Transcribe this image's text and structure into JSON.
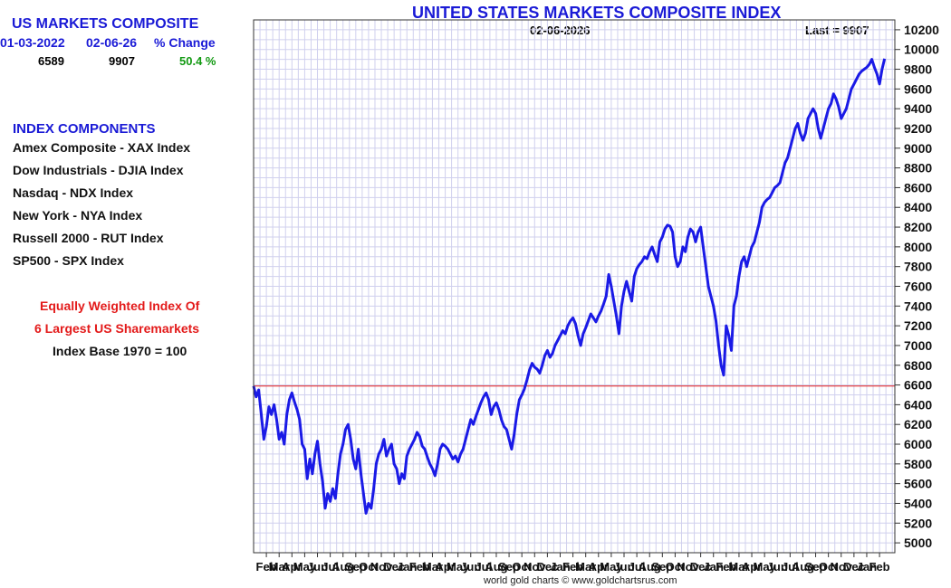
{
  "summary": {
    "title": "US MARKETS COMPOSITE",
    "start_date": "01-03-2022",
    "end_date": "02-06-26",
    "change_label": "% Change",
    "start_value": "6589",
    "end_value": "9907",
    "change_value": "50.4 %"
  },
  "components": {
    "title": "INDEX COMPONENTS",
    "items": [
      "Amex Composite - XAX Index",
      "Dow Industrials - DJIA Index",
      "Nasdaq - NDX Index",
      "New York - NYA Index",
      "Russell 2000 - RUT Index",
      "SP500 - SPX Index"
    ]
  },
  "notes": {
    "line1": "Equally Weighted Index Of",
    "line2": "6 Largest US Sharemarkets",
    "line3": "Index Base 1970 = 100"
  },
  "footer": "world gold charts © www.goldchartsrus.com",
  "chart_data": {
    "type": "line",
    "title": "UNITED STATES MARKETS COMPOSITE INDEX",
    "date_label": "02-06-2026",
    "last_label": "Last = 9907",
    "ylim": [
      4900,
      10300
    ],
    "yticks": [
      5000,
      5200,
      5400,
      5600,
      5800,
      6000,
      6200,
      6400,
      6600,
      6800,
      7000,
      7200,
      7400,
      7600,
      7800,
      8000,
      8200,
      8400,
      8600,
      8800,
      9000,
      9200,
      9400,
      9600,
      9800,
      10000,
      10200
    ],
    "reference_line": 6589,
    "month_labels": [
      "Feb",
      "Mar",
      "Apr",
      "May",
      "Jun",
      "Jul",
      "Aug",
      "Sep",
      "Oct",
      "Nov",
      "Dec",
      "Jan",
      "Feb",
      "Mar",
      "Apr",
      "May",
      "Jun",
      "Jul",
      "Aug",
      "Sep",
      "Oct",
      "Nov",
      "Dec",
      "Jan",
      "Feb",
      "Mar",
      "Apr",
      "May",
      "Jun",
      "Jul",
      "Aug",
      "Sep",
      "Oct",
      "Nov",
      "Dec",
      "Jan",
      "Feb",
      "Mar",
      "Apr",
      "May",
      "Jun",
      "Jul",
      "Aug",
      "Sep",
      "Oct",
      "Nov",
      "Dec",
      "Jan",
      "Feb"
    ],
    "x_start_month_index": -1,
    "x_end_month_index": 49.2,
    "series": [
      {
        "name": "US Markets Composite",
        "color": "#1a1ae6",
        "points": [
          [
            -1.0,
            6589
          ],
          [
            -0.8,
            6480
          ],
          [
            -0.6,
            6550
          ],
          [
            -0.4,
            6300
          ],
          [
            -0.2,
            6050
          ],
          [
            0.0,
            6180
          ],
          [
            0.2,
            6380
          ],
          [
            0.4,
            6300
          ],
          [
            0.6,
            6400
          ],
          [
            0.8,
            6250
          ],
          [
            1.0,
            6050
          ],
          [
            1.2,
            6120
          ],
          [
            1.4,
            6000
          ],
          [
            1.6,
            6300
          ],
          [
            1.8,
            6450
          ],
          [
            2.0,
            6520
          ],
          [
            2.2,
            6430
          ],
          [
            2.4,
            6350
          ],
          [
            2.6,
            6250
          ],
          [
            2.8,
            6000
          ],
          [
            3.0,
            5950
          ],
          [
            3.2,
            5650
          ],
          [
            3.4,
            5850
          ],
          [
            3.6,
            5700
          ],
          [
            3.8,
            5900
          ],
          [
            4.0,
            6030
          ],
          [
            4.2,
            5800
          ],
          [
            4.4,
            5620
          ],
          [
            4.6,
            5350
          ],
          [
            4.8,
            5500
          ],
          [
            5.0,
            5420
          ],
          [
            5.2,
            5550
          ],
          [
            5.4,
            5450
          ],
          [
            5.6,
            5700
          ],
          [
            5.8,
            5900
          ],
          [
            6.0,
            6000
          ],
          [
            6.2,
            6150
          ],
          [
            6.4,
            6200
          ],
          [
            6.6,
            6050
          ],
          [
            6.8,
            5850
          ],
          [
            7.0,
            5750
          ],
          [
            7.2,
            5950
          ],
          [
            7.4,
            5700
          ],
          [
            7.6,
            5500
          ],
          [
            7.8,
            5300
          ],
          [
            8.0,
            5400
          ],
          [
            8.2,
            5350
          ],
          [
            8.4,
            5550
          ],
          [
            8.6,
            5800
          ],
          [
            8.8,
            5900
          ],
          [
            9.0,
            5950
          ],
          [
            9.2,
            6050
          ],
          [
            9.4,
            5880
          ],
          [
            9.6,
            5950
          ],
          [
            9.8,
            6000
          ],
          [
            10.0,
            5800
          ],
          [
            10.2,
            5750
          ],
          [
            10.4,
            5600
          ],
          [
            10.6,
            5700
          ],
          [
            10.8,
            5650
          ],
          [
            11.0,
            5880
          ],
          [
            11.2,
            5950
          ],
          [
            11.4,
            6000
          ],
          [
            11.6,
            6050
          ],
          [
            11.8,
            6120
          ],
          [
            12.0,
            6080
          ],
          [
            12.2,
            5980
          ],
          [
            12.4,
            5950
          ],
          [
            12.6,
            5870
          ],
          [
            12.8,
            5800
          ],
          [
            13.0,
            5750
          ],
          [
            13.2,
            5680
          ],
          [
            13.4,
            5800
          ],
          [
            13.6,
            5950
          ],
          [
            13.8,
            6000
          ],
          [
            14.0,
            5980
          ],
          [
            14.2,
            5950
          ],
          [
            14.4,
            5900
          ],
          [
            14.6,
            5850
          ],
          [
            14.8,
            5880
          ],
          [
            15.0,
            5820
          ],
          [
            15.2,
            5900
          ],
          [
            15.4,
            5950
          ],
          [
            15.6,
            6050
          ],
          [
            15.8,
            6150
          ],
          [
            16.0,
            6250
          ],
          [
            16.2,
            6200
          ],
          [
            16.4,
            6280
          ],
          [
            16.6,
            6350
          ],
          [
            16.8,
            6420
          ],
          [
            17.0,
            6480
          ],
          [
            17.2,
            6520
          ],
          [
            17.4,
            6450
          ],
          [
            17.6,
            6300
          ],
          [
            17.8,
            6380
          ],
          [
            18.0,
            6420
          ],
          [
            18.2,
            6350
          ],
          [
            18.4,
            6250
          ],
          [
            18.6,
            6180
          ],
          [
            18.8,
            6150
          ],
          [
            19.0,
            6050
          ],
          [
            19.2,
            5950
          ],
          [
            19.4,
            6100
          ],
          [
            19.6,
            6300
          ],
          [
            19.8,
            6450
          ],
          [
            20.0,
            6500
          ],
          [
            20.2,
            6560
          ],
          [
            20.4,
            6650
          ],
          [
            20.6,
            6750
          ],
          [
            20.8,
            6820
          ],
          [
            21.0,
            6780
          ],
          [
            21.2,
            6760
          ],
          [
            21.4,
            6720
          ],
          [
            21.6,
            6800
          ],
          [
            21.8,
            6900
          ],
          [
            22.0,
            6950
          ],
          [
            22.2,
            6880
          ],
          [
            22.4,
            6920
          ],
          [
            22.6,
            7000
          ],
          [
            22.8,
            7050
          ],
          [
            23.0,
            7100
          ],
          [
            23.2,
            7150
          ],
          [
            23.4,
            7120
          ],
          [
            23.6,
            7200
          ],
          [
            23.8,
            7250
          ],
          [
            24.0,
            7280
          ],
          [
            24.2,
            7220
          ],
          [
            24.4,
            7100
          ],
          [
            24.6,
            7000
          ],
          [
            24.8,
            7120
          ],
          [
            25.0,
            7180
          ],
          [
            25.2,
            7250
          ],
          [
            25.4,
            7320
          ],
          [
            25.6,
            7280
          ],
          [
            25.8,
            7240
          ],
          [
            26.0,
            7300
          ],
          [
            26.2,
            7350
          ],
          [
            26.4,
            7420
          ],
          [
            26.6,
            7500
          ],
          [
            26.8,
            7720
          ],
          [
            27.0,
            7600
          ],
          [
            27.2,
            7450
          ],
          [
            27.4,
            7300
          ],
          [
            27.6,
            7120
          ],
          [
            27.8,
            7400
          ],
          [
            28.0,
            7550
          ],
          [
            28.2,
            7650
          ],
          [
            28.4,
            7550
          ],
          [
            28.6,
            7450
          ],
          [
            28.8,
            7700
          ],
          [
            29.0,
            7780
          ],
          [
            29.2,
            7820
          ],
          [
            29.4,
            7850
          ],
          [
            29.6,
            7900
          ],
          [
            29.8,
            7880
          ],
          [
            30.0,
            7950
          ],
          [
            30.2,
            8000
          ],
          [
            30.4,
            7920
          ],
          [
            30.6,
            7850
          ],
          [
            30.8,
            8050
          ],
          [
            31.0,
            8100
          ],
          [
            31.2,
            8180
          ],
          [
            31.4,
            8220
          ],
          [
            31.6,
            8210
          ],
          [
            31.8,
            8150
          ],
          [
            32.0,
            7900
          ],
          [
            32.2,
            7800
          ],
          [
            32.4,
            7850
          ],
          [
            32.6,
            8000
          ],
          [
            32.8,
            7950
          ],
          [
            33.0,
            8100
          ],
          [
            33.2,
            8180
          ],
          [
            33.4,
            8150
          ],
          [
            33.6,
            8050
          ],
          [
            33.8,
            8150
          ],
          [
            34.0,
            8200
          ],
          [
            34.2,
            8000
          ],
          [
            34.4,
            7800
          ],
          [
            34.6,
            7600
          ],
          [
            34.8,
            7500
          ],
          [
            35.0,
            7400
          ],
          [
            35.2,
            7250
          ],
          [
            35.4,
            7000
          ],
          [
            35.6,
            6800
          ],
          [
            35.8,
            6700
          ],
          [
            36.0,
            7200
          ],
          [
            36.2,
            7100
          ],
          [
            36.4,
            6950
          ],
          [
            36.6,
            7400
          ],
          [
            36.8,
            7500
          ],
          [
            37.0,
            7700
          ],
          [
            37.2,
            7850
          ],
          [
            37.4,
            7900
          ],
          [
            37.6,
            7800
          ],
          [
            37.8,
            7900
          ],
          [
            38.0,
            8000
          ],
          [
            38.2,
            8050
          ],
          [
            38.4,
            8150
          ],
          [
            38.6,
            8250
          ],
          [
            38.8,
            8400
          ],
          [
            39.0,
            8450
          ],
          [
            39.2,
            8480
          ],
          [
            39.4,
            8500
          ],
          [
            39.6,
            8550
          ],
          [
            39.8,
            8600
          ],
          [
            40.0,
            8620
          ],
          [
            40.2,
            8650
          ],
          [
            40.4,
            8750
          ],
          [
            40.6,
            8850
          ],
          [
            40.8,
            8900
          ],
          [
            41.0,
            9000
          ],
          [
            41.2,
            9100
          ],
          [
            41.4,
            9200
          ],
          [
            41.6,
            9250
          ],
          [
            41.8,
            9150
          ],
          [
            42.0,
            9080
          ],
          [
            42.2,
            9150
          ],
          [
            42.4,
            9300
          ],
          [
            42.6,
            9350
          ],
          [
            42.8,
            9400
          ],
          [
            43.0,
            9350
          ],
          [
            43.2,
            9200
          ],
          [
            43.4,
            9100
          ],
          [
            43.6,
            9200
          ],
          [
            43.8,
            9300
          ],
          [
            44.0,
            9400
          ],
          [
            44.2,
            9450
          ],
          [
            44.4,
            9550
          ],
          [
            44.6,
            9500
          ],
          [
            44.8,
            9420
          ],
          [
            45.0,
            9300
          ],
          [
            45.2,
            9350
          ],
          [
            45.4,
            9400
          ],
          [
            45.6,
            9500
          ],
          [
            45.8,
            9600
          ],
          [
            46.0,
            9650
          ],
          [
            46.2,
            9700
          ],
          [
            46.4,
            9750
          ],
          [
            46.6,
            9780
          ],
          [
            46.8,
            9800
          ],
          [
            47.0,
            9820
          ],
          [
            47.2,
            9850
          ],
          [
            47.4,
            9900
          ],
          [
            47.6,
            9820
          ],
          [
            47.8,
            9750
          ],
          [
            48.0,
            9650
          ],
          [
            48.2,
            9800
          ],
          [
            48.4,
            9907
          ]
        ]
      }
    ]
  }
}
